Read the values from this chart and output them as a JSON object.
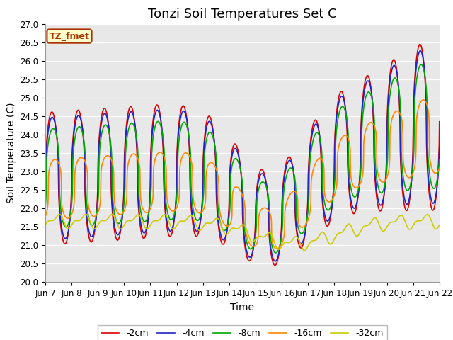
{
  "title": "Tonzi Soil Temperatures Set C",
  "xlabel": "Time",
  "ylabel": "Soil Temperature (C)",
  "ylim": [
    20.0,
    27.0
  ],
  "yticks": [
    20.0,
    20.5,
    21.0,
    21.5,
    22.0,
    22.5,
    23.0,
    23.5,
    24.0,
    24.5,
    25.0,
    25.5,
    26.0,
    26.5,
    27.0
  ],
  "xtick_labels": [
    "Jun 7",
    "Jun 8",
    "Jun 9",
    "Jun 10",
    "Jun 11",
    "Jun 12",
    "Jun 13",
    "Jun 14",
    "Jun 15",
    "Jun 16",
    "Jun 17",
    "Jun 18",
    "Jun 19",
    "Jun 20",
    "Jun 21",
    "Jun 22"
  ],
  "line_colors": [
    "#dd0000",
    "#2222cc",
    "#00aa00",
    "#ff8800",
    "#cccc00"
  ],
  "line_labels": [
    "-2cm",
    "-4cm",
    "-8cm",
    "-16cm",
    "-32cm"
  ],
  "annotation_text": "TZ_fmet",
  "annotation_bg": "#ffffcc",
  "annotation_border": "#aa3300",
  "background_color": "#e8e8e8",
  "title_fontsize": 13,
  "axis_label_fontsize": 10,
  "tick_fontsize": 8.5
}
